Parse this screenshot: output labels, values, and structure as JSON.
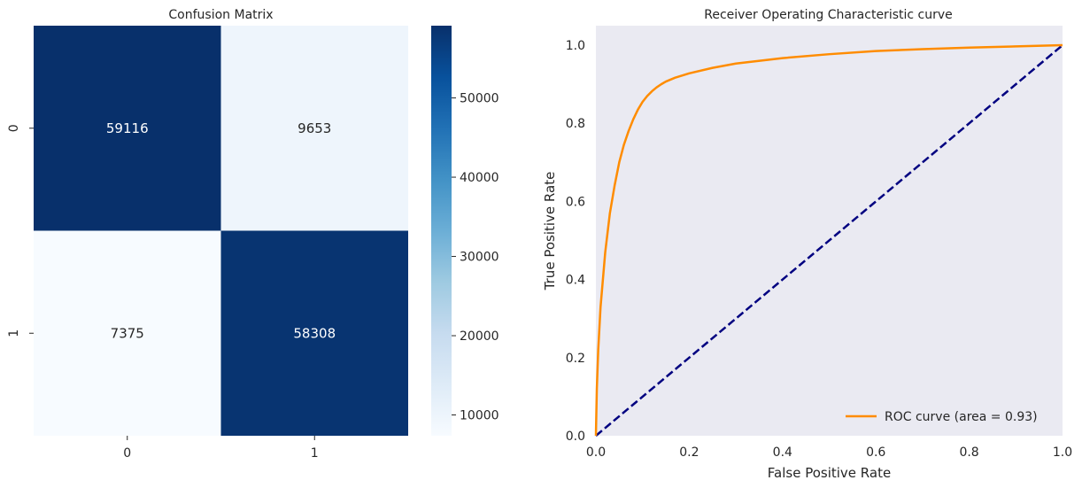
{
  "chart_data": [
    {
      "type": "heatmap",
      "title": "Confusion Matrix",
      "x_categories": [
        "0",
        "1"
      ],
      "y_categories": [
        "0",
        "1"
      ],
      "values": [
        [
          59116,
          9653
        ],
        [
          7375,
          58308
        ]
      ],
      "colorscale": "Blues",
      "colorbar": {
        "min": 7375,
        "max": 59116,
        "ticks": [
          10000,
          20000,
          30000,
          40000,
          50000
        ],
        "tick_labels": [
          "10000",
          "20000",
          "30000",
          "40000",
          "50000"
        ]
      }
    },
    {
      "type": "line",
      "title": "Receiver Operating Characteristic curve",
      "xlabel": "False Positive Rate",
      "ylabel": "True Positive Rate",
      "xlim": [
        0.0,
        1.0
      ],
      "ylim": [
        0.0,
        1.05
      ],
      "xticks": [
        "0.0",
        "0.2",
        "0.4",
        "0.6",
        "0.8",
        "1.0"
      ],
      "yticks": [
        "0.0",
        "0.2",
        "0.4",
        "0.6",
        "0.8",
        "1.0"
      ],
      "background": "#eaeaf2",
      "grid": false,
      "legend_position": "lower right",
      "series": [
        {
          "name": "ROC curve (area = 0.93)",
          "color": "#ff8c00",
          "style": "solid",
          "x": [
            0.0,
            0.002,
            0.005,
            0.01,
            0.02,
            0.03,
            0.04,
            0.05,
            0.06,
            0.07,
            0.08,
            0.09,
            0.1,
            0.11,
            0.12,
            0.13,
            0.14,
            0.15,
            0.17,
            0.2,
            0.25,
            0.3,
            0.4,
            0.5,
            0.6,
            0.7,
            0.8,
            0.9,
            1.0
          ],
          "y": [
            0.0,
            0.12,
            0.22,
            0.33,
            0.47,
            0.57,
            0.64,
            0.7,
            0.745,
            0.78,
            0.81,
            0.835,
            0.855,
            0.87,
            0.882,
            0.892,
            0.9,
            0.907,
            0.917,
            0.928,
            0.942,
            0.953,
            0.967,
            0.977,
            0.985,
            0.99,
            0.994,
            0.997,
            1.0
          ]
        },
        {
          "name": "",
          "color": "#000080",
          "style": "dashed",
          "x": [
            0.0,
            1.0
          ],
          "y": [
            0.0,
            1.0
          ]
        }
      ]
    }
  ]
}
